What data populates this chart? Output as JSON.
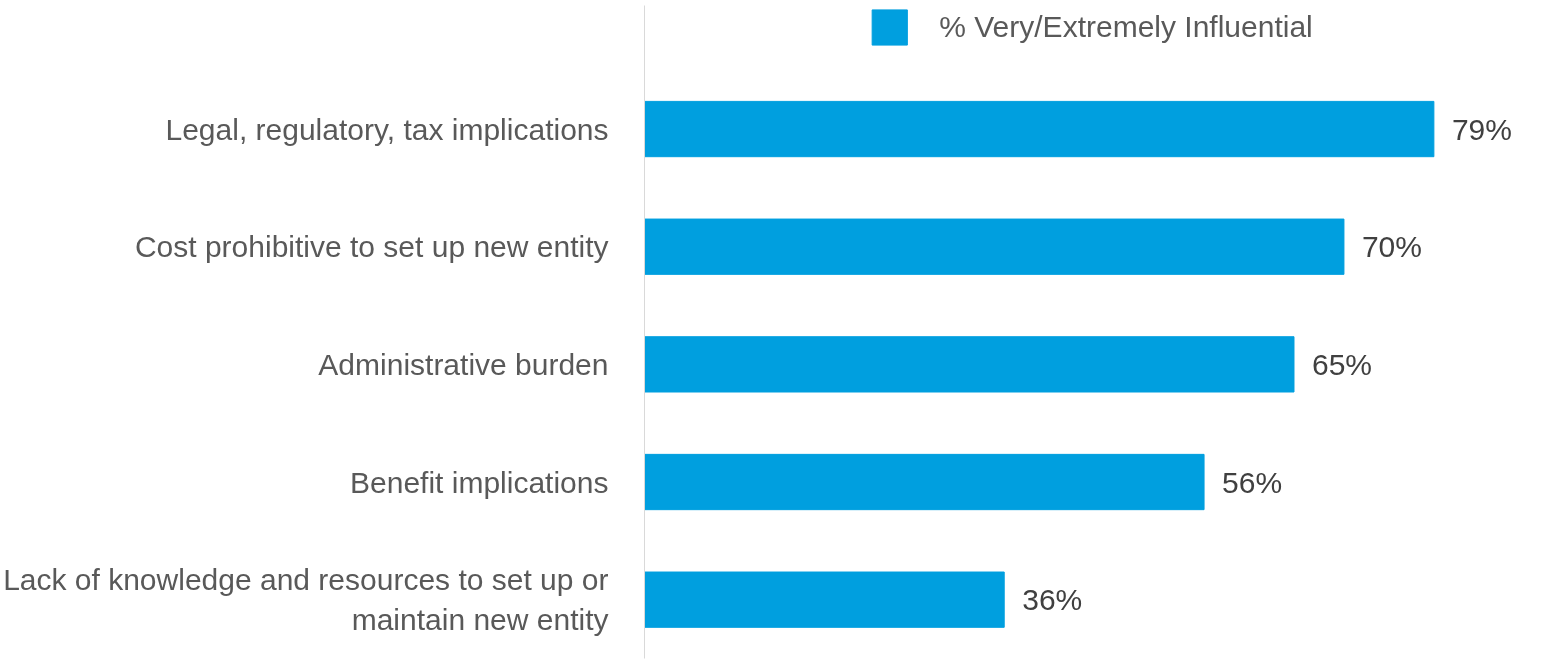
{
  "chart_data": {
    "type": "bar",
    "orientation": "horizontal",
    "categories": [
      "Legal, regulatory, tax implications",
      "Cost prohibitive to set up new entity",
      "Administrative burden",
      "Benefit implications",
      "Lack of knowledge and resources to set up or maintain new entity"
    ],
    "series": [
      {
        "name": "% Very/Extremely Influential",
        "color": "#009fdf",
        "values": [
          79,
          70,
          65,
          56,
          36
        ],
        "value_labels": [
          "79%",
          "70%",
          "65%",
          "56%",
          "36%"
        ]
      }
    ],
    "legend": "top",
    "grid": false
  }
}
